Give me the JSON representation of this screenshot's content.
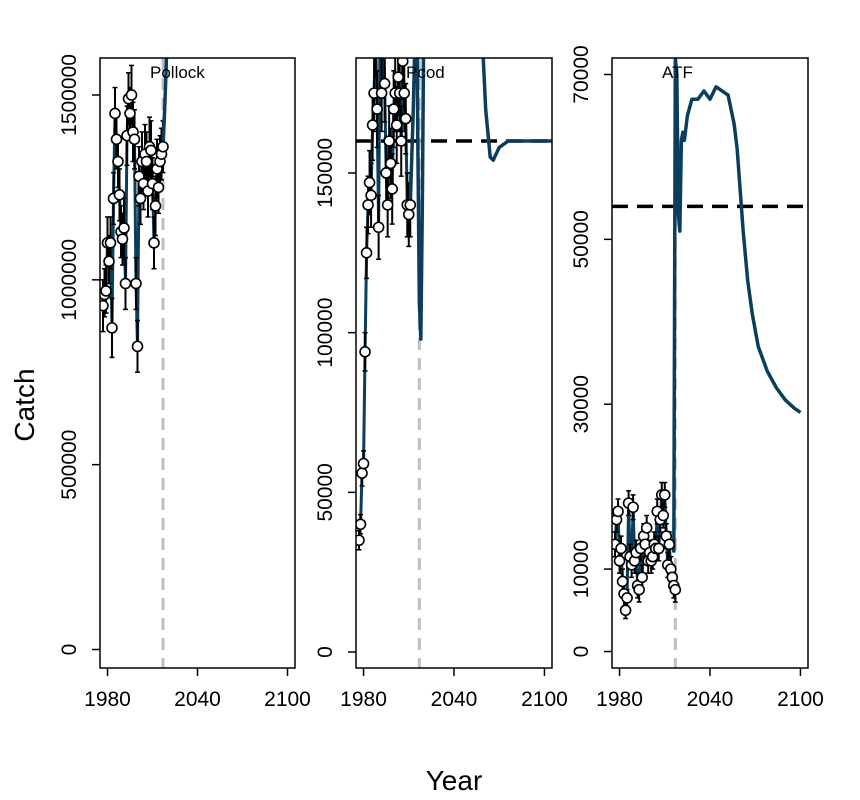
{
  "chart_data": {
    "type": "line",
    "xlabel": "Year",
    "ylabel": "Catch",
    "colors": {
      "projection_line": "#0b3d5c",
      "reference_line": "#000000",
      "divider_line": "#bfbfbf",
      "point_fill": "#ffffff",
      "point_stroke": "#000000"
    },
    "panels": [
      {
        "title": "Pollock",
        "xlim": [
          1975,
          2105
        ],
        "ylim": [
          -50000,
          1600000
        ],
        "xticks": [
          1980,
          2040,
          2100
        ],
        "xtick_labels": [
          "1980",
          "2040",
          "2100"
        ],
        "yticks": [
          0,
          500000,
          1000000,
          1500000
        ],
        "ytick_labels": [
          "0",
          "500000",
          "1000000",
          "1500000"
        ],
        "divider_year": 2017,
        "reference_level": null,
        "observed": {
          "years": [
            1977,
            1978,
            1979,
            1980,
            1981,
            1982,
            1983,
            1984,
            1985,
            1986,
            1987,
            1988,
            1989,
            1990,
            1991,
            1992,
            1993,
            1994,
            1995,
            1996,
            1997,
            1998,
            1999,
            2000,
            2001,
            2002,
            2003,
            2004,
            2005,
            2006,
            2007,
            2008,
            2009,
            2010,
            2011,
            2012,
            2013,
            2014,
            2015,
            2016,
            2017
          ],
          "values": [
            930000,
            960000,
            970000,
            1100000,
            1050000,
            1100000,
            870000,
            1220000,
            1450000,
            1380000,
            1320000,
            1230000,
            1130000,
            1110000,
            1140000,
            990000,
            1390000,
            1490000,
            1450000,
            1500000,
            1400000,
            1380000,
            990000,
            820000,
            1280000,
            1220000,
            1320000,
            1260000,
            1340000,
            1320000,
            1240000,
            1360000,
            1350000,
            1260000,
            1100000,
            1200000,
            1300000,
            1250000,
            1320000,
            1340000,
            1360000
          ],
          "ci_low": [
            860000,
            900000,
            910000,
            1040000,
            990000,
            1030000,
            790000,
            1150000,
            1380000,
            1300000,
            1250000,
            1160000,
            1060000,
            1040000,
            1060000,
            920000,
            1310000,
            1420000,
            1380000,
            1420000,
            1320000,
            1300000,
            920000,
            750000,
            1200000,
            1150000,
            1240000,
            1190000,
            1260000,
            1240000,
            1170000,
            1280000,
            1270000,
            1190000,
            1030000,
            1120000,
            1220000,
            1180000,
            1250000,
            1270000,
            1290000
          ],
          "ci_high": [
            1000000,
            1030000,
            1040000,
            1170000,
            1120000,
            1170000,
            950000,
            1290000,
            1520000,
            1460000,
            1390000,
            1300000,
            1200000,
            1180000,
            1220000,
            1060000,
            1470000,
            1560000,
            1520000,
            1580000,
            1480000,
            1460000,
            1060000,
            890000,
            1360000,
            1290000,
            1400000,
            1330000,
            1420000,
            1400000,
            1310000,
            1440000,
            1430000,
            1330000,
            1170000,
            1280000,
            1380000,
            1320000,
            1390000,
            1410000,
            1430000
          ]
        },
        "projection": {
          "years": [
            2017,
            2018,
            2019,
            2020
          ],
          "values": [
            1360000,
            1450000,
            1560000,
            1700000
          ]
        }
      },
      {
        "title": "Pcod",
        "xlim": [
          1975,
          2105
        ],
        "ylim": [
          -5000,
          186000
        ],
        "xticks": [
          1980,
          2040,
          2100
        ],
        "xtick_labels": [
          "1980",
          "2040",
          "2100"
        ],
        "yticks": [
          0,
          50000,
          100000,
          150000
        ],
        "ytick_labels": [
          "0",
          "50000",
          "100000",
          "150000"
        ],
        "divider_year": 2017,
        "reference_level": 160000,
        "observed": {
          "years": [
            1977,
            1978,
            1979,
            1980,
            1981,
            1982,
            1983,
            1984,
            1985,
            1986,
            1987,
            1988,
            1989,
            1990,
            1991,
            1992,
            1993,
            1994,
            1995,
            1996,
            1997,
            1998,
            1999,
            2000,
            2001,
            2002,
            2003,
            2004,
            2005,
            2006,
            2007,
            2008,
            2009,
            2010,
            2011
          ],
          "values": [
            35000,
            40000,
            56000,
            59000,
            94000,
            125000,
            140000,
            147000,
            143000,
            165000,
            175000,
            193000,
            170000,
            133000,
            200000,
            175000,
            203000,
            178000,
            150000,
            140000,
            160000,
            153000,
            145000,
            170000,
            175000,
            165000,
            180000,
            175000,
            160000,
            185000,
            175000,
            167000,
            140000,
            137000,
            140000
          ],
          "ci_low": [
            32000,
            37000,
            52000,
            55000,
            88000,
            117000,
            131000,
            137000,
            133000,
            154000,
            163000,
            180000,
            158000,
            123000,
            187000,
            163000,
            190000,
            166000,
            139000,
            130000,
            149000,
            142000,
            134000,
            158000,
            163000,
            153000,
            168000,
            163000,
            149000,
            173000,
            163000,
            156000,
            130000,
            127000,
            130000
          ],
          "ci_high": [
            38000,
            43000,
            60000,
            63000,
            100000,
            133000,
            149000,
            157000,
            153000,
            176000,
            187000,
            206000,
            182000,
            143000,
            213000,
            187000,
            216000,
            190000,
            161000,
            150000,
            171000,
            164000,
            156000,
            182000,
            187000,
            177000,
            192000,
            187000,
            171000,
            197000,
            187000,
            178000,
            150000,
            147000,
            150000
          ]
        },
        "projection": {
          "years": [
            2011,
            2012,
            2013,
            2014,
            2015,
            2016,
            2017,
            2018,
            2019,
            2020,
            2021,
            2022,
            2023,
            2024,
            2058,
            2061,
            2064,
            2066,
            2068,
            2070,
            2073,
            2076,
            2080,
            2085,
            2090,
            2095,
            2100,
            2105
          ],
          "values": [
            140000,
            155000,
            170000,
            190000,
            230000,
            160000,
            110000,
            98000,
            140000,
            200000,
            250000,
            300000,
            330000,
            360000,
            200000,
            170000,
            155000,
            154000,
            156000,
            158000,
            159000,
            160000,
            160000,
            160000,
            160000,
            160000,
            160000,
            160000
          ]
        }
      },
      {
        "title": "ATF",
        "xlim": [
          1975,
          2105
        ],
        "ylim": [
          -2000,
          72000
        ],
        "xticks": [
          1980,
          2040,
          2100
        ],
        "xtick_labels": [
          "1980",
          "2040",
          "2100"
        ],
        "yticks": [
          0,
          10000,
          30000,
          50000,
          70000
        ],
        "ytick_labels": [
          "0",
          "10000",
          "30000",
          "50000",
          "70000"
        ],
        "divider_year": 2017,
        "reference_level": 54000,
        "observed": {
          "years": [
            1977,
            1978,
            1979,
            1980,
            1981,
            1982,
            1983,
            1984,
            1985,
            1986,
            1987,
            1988,
            1989,
            1990,
            1991,
            1992,
            1993,
            1994,
            1995,
            1996,
            1997,
            1998,
            1999,
            2000,
            2001,
            2002,
            2003,
            2004,
            2005,
            2006,
            2007,
            2008,
            2009,
            2010,
            2011,
            2012,
            2013,
            2014,
            2015,
            2016,
            2017
          ],
          "values": [
            13000,
            16000,
            17000,
            11000,
            12500,
            8500,
            7000,
            5000,
            6500,
            18000,
            11500,
            10500,
            17500,
            11000,
            12000,
            8000,
            7500,
            12500,
            9000,
            14000,
            13000,
            15000,
            11000,
            12000,
            11000,
            11500,
            13000,
            12500,
            17000,
            12500,
            16000,
            19000,
            16500,
            19000,
            14000,
            10500,
            13000,
            10000,
            9000,
            8000,
            7500
          ],
          "ci_low": [
            11500,
            14500,
            15500,
            9500,
            11000,
            7000,
            5500,
            4000,
            5500,
            16500,
            10000,
            9000,
            16000,
            9500,
            10500,
            6500,
            6000,
            11000,
            7500,
            12500,
            11500,
            13500,
            9500,
            10500,
            9500,
            10000,
            11500,
            11000,
            15500,
            11000,
            14500,
            17500,
            15000,
            17500,
            12500,
            9000,
            11500,
            8500,
            7500,
            6500,
            6000
          ],
          "ci_high": [
            14500,
            17500,
            18500,
            12500,
            14000,
            10000,
            8500,
            6000,
            7500,
            19500,
            13000,
            12000,
            19000,
            12500,
            13500,
            9500,
            9000,
            14000,
            10500,
            15500,
            14500,
            16500,
            12500,
            13500,
            12500,
            13000,
            14500,
            14000,
            18500,
            14000,
            17500,
            20500,
            18000,
            20500,
            15500,
            12000,
            14500,
            11500,
            10500,
            9500,
            9000
          ]
        },
        "projection": {
          "years": [
            2016,
            2017,
            2018,
            2019,
            2020,
            2021,
            2022,
            2023,
            2025,
            2028,
            2032,
            2036,
            2040,
            2044,
            2048,
            2052,
            2056,
            2058,
            2060,
            2062,
            2065,
            2068,
            2072,
            2078,
            2084,
            2090,
            2096,
            2100
          ],
          "values": [
            12000,
            72000,
            70000,
            53000,
            51000,
            62000,
            63000,
            62000,
            65000,
            67000,
            67000,
            68000,
            67000,
            68500,
            68000,
            67500,
            64000,
            61000,
            56000,
            51000,
            45000,
            41000,
            37000,
            34000,
            32000,
            30500,
            29500,
            29000
          ]
        }
      }
    ]
  }
}
